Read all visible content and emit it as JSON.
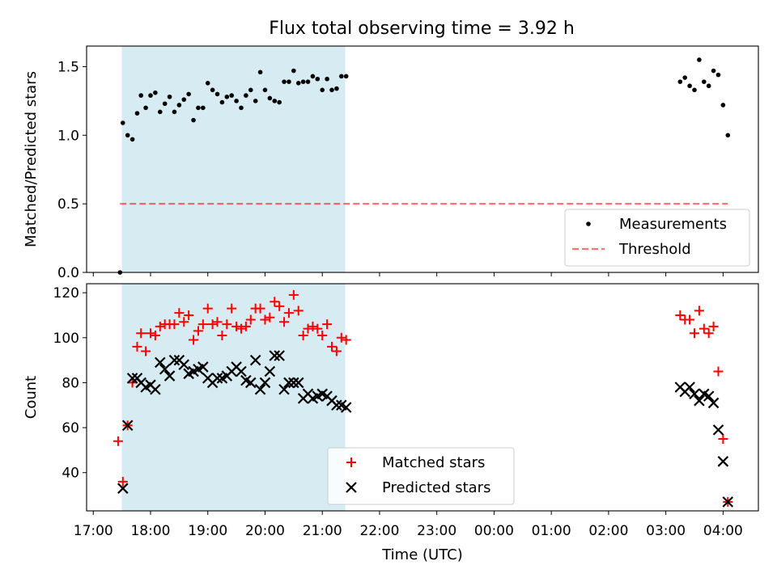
{
  "figure": {
    "title": "Flux total observing time = 3.92 h"
  },
  "colors": {
    "shade": "#add8e6",
    "threshold": "#ff0000",
    "measurement": "#000000",
    "matched": "#ff0000",
    "predicted": "#000000"
  },
  "chart_data": [
    {
      "type": "scatter",
      "ylabel": "Matched/Predicted stars",
      "ylim": [
        0,
        1.65
      ],
      "xlim": [
        "16:53",
        "04:37"
      ],
      "yticks": [
        "0.0",
        "0.5",
        "1.0",
        "1.5"
      ],
      "ytick_values": [
        0,
        0.5,
        1.0,
        1.5
      ],
      "shaded_interval": [
        "17:30",
        "21:24"
      ],
      "legend_position": "lower right",
      "series": [
        {
          "name": "Measurements",
          "kind": "scatter",
          "points": [
            [
              "17:28",
              0.0
            ],
            [
              "17:31",
              1.09
            ],
            [
              "17:36",
              1.0
            ],
            [
              "17:41",
              0.97
            ],
            [
              "17:46",
              1.16
            ],
            [
              "17:50",
              1.29
            ],
            [
              "17:55",
              1.2
            ],
            [
              "18:00",
              1.29
            ],
            [
              "18:05",
              1.31
            ],
            [
              "18:10",
              1.17
            ],
            [
              "18:15",
              1.23
            ],
            [
              "18:20",
              1.28
            ],
            [
              "18:25",
              1.17
            ],
            [
              "18:30",
              1.22
            ],
            [
              "18:35",
              1.26
            ],
            [
              "18:40",
              1.3
            ],
            [
              "18:45",
              1.11
            ],
            [
              "18:50",
              1.2
            ],
            [
              "18:55",
              1.2
            ],
            [
              "19:00",
              1.38
            ],
            [
              "19:05",
              1.33
            ],
            [
              "19:10",
              1.3
            ],
            [
              "19:15",
              1.24
            ],
            [
              "19:20",
              1.28
            ],
            [
              "19:25",
              1.29
            ],
            [
              "19:30",
              1.25
            ],
            [
              "19:35",
              1.2
            ],
            [
              "19:40",
              1.29
            ],
            [
              "19:45",
              1.33
            ],
            [
              "19:50",
              1.25
            ],
            [
              "19:55",
              1.46
            ],
            [
              "20:00",
              1.33
            ],
            [
              "20:05",
              1.27
            ],
            [
              "20:10",
              1.25
            ],
            [
              "20:15",
              1.24
            ],
            [
              "20:20",
              1.39
            ],
            [
              "20:25",
              1.39
            ],
            [
              "20:30",
              1.47
            ],
            [
              "20:35",
              1.38
            ],
            [
              "20:40",
              1.39
            ],
            [
              "20:45",
              1.39
            ],
            [
              "20:50",
              1.43
            ],
            [
              "20:55",
              1.41
            ],
            [
              "21:00",
              1.33
            ],
            [
              "21:05",
              1.41
            ],
            [
              "21:10",
              1.33
            ],
            [
              "21:15",
              1.34
            ],
            [
              "21:20",
              1.43
            ],
            [
              "21:25",
              1.43
            ],
            [
              "03:15",
              1.39
            ],
            [
              "03:20",
              1.42
            ],
            [
              "03:25",
              1.36
            ],
            [
              "03:30",
              1.33
            ],
            [
              "03:35",
              1.55
            ],
            [
              "03:40",
              1.39
            ],
            [
              "03:45",
              1.36
            ],
            [
              "03:50",
              1.47
            ],
            [
              "03:55",
              1.44
            ],
            [
              "04:00",
              1.22
            ],
            [
              "04:05",
              1.0
            ]
          ]
        },
        {
          "name": "Threshold",
          "kind": "line",
          "points": [
            [
              "17:28",
              0.5
            ],
            [
              "04:05",
              0.5
            ]
          ]
        }
      ]
    },
    {
      "type": "scatter",
      "ylabel": "Count",
      "xlabel": "Time (UTC)",
      "ylim": [
        23,
        124
      ],
      "xlim": [
        "16:53",
        "04:37"
      ],
      "yticks": [
        "40",
        "60",
        "80",
        "100",
        "120"
      ],
      "ytick_values": [
        40,
        60,
        80,
        100,
        120
      ],
      "xticks": [
        "17:00",
        "18:00",
        "19:00",
        "20:00",
        "21:00",
        "22:00",
        "23:00",
        "00:00",
        "01:00",
        "02:00",
        "03:00",
        "04:00"
      ],
      "shaded_interval": [
        "17:30",
        "21:24"
      ],
      "legend_position": "lower center",
      "series": [
        {
          "name": "Matched stars",
          "marker": "plus",
          "points": [
            [
              "17:26",
              54
            ],
            [
              "17:31",
              36
            ],
            [
              "17:36",
              61
            ],
            [
              "17:41",
              80
            ],
            [
              "17:46",
              96
            ],
            [
              "17:50",
              102
            ],
            [
              "17:55",
              94
            ],
            [
              "18:00",
              102
            ],
            [
              "18:05",
              101
            ],
            [
              "18:10",
              105
            ],
            [
              "18:15",
              106
            ],
            [
              "18:20",
              106
            ],
            [
              "18:25",
              106
            ],
            [
              "18:30",
              111
            ],
            [
              "18:35",
              107
            ],
            [
              "18:40",
              110
            ],
            [
              "18:45",
              99
            ],
            [
              "18:50",
              103
            ],
            [
              "18:55",
              106
            ],
            [
              "19:00",
              113
            ],
            [
              "19:05",
              106
            ],
            [
              "19:10",
              107
            ],
            [
              "19:15",
              101
            ],
            [
              "19:20",
              106
            ],
            [
              "19:25",
              113
            ],
            [
              "19:30",
              105
            ],
            [
              "19:35",
              104
            ],
            [
              "19:40",
              105
            ],
            [
              "19:45",
              108
            ],
            [
              "19:50",
              113
            ],
            [
              "19:55",
              113
            ],
            [
              "20:00",
              108
            ],
            [
              "20:05",
              109
            ],
            [
              "20:10",
              116
            ],
            [
              "20:15",
              114
            ],
            [
              "20:20",
              107
            ],
            [
              "20:25",
              111
            ],
            [
              "20:30",
              119
            ],
            [
              "20:35",
              112
            ],
            [
              "20:40",
              101
            ],
            [
              "20:45",
              104
            ],
            [
              "20:50",
              105
            ],
            [
              "20:55",
              104
            ],
            [
              "21:00",
              101
            ],
            [
              "21:05",
              106
            ],
            [
              "21:10",
              96
            ],
            [
              "21:15",
              94
            ],
            [
              "21:20",
              100
            ],
            [
              "21:25",
              99
            ],
            [
              "03:15",
              110
            ],
            [
              "03:20",
              108
            ],
            [
              "03:25",
              108
            ],
            [
              "03:30",
              102
            ],
            [
              "03:35",
              112
            ],
            [
              "03:40",
              104
            ],
            [
              "03:45",
              102
            ],
            [
              "03:50",
              105
            ],
            [
              "03:55",
              85
            ],
            [
              "04:00",
              55
            ],
            [
              "04:05",
              27
            ]
          ]
        },
        {
          "name": "Predicted stars",
          "marker": "x",
          "points": [
            [
              "17:31",
              33
            ],
            [
              "17:36",
              61
            ],
            [
              "17:41",
              82
            ],
            [
              "17:46",
              82
            ],
            [
              "17:50",
              80
            ],
            [
              "17:55",
              78
            ],
            [
              "18:00",
              79
            ],
            [
              "18:05",
              77
            ],
            [
              "18:10",
              89
            ],
            [
              "18:15",
              86
            ],
            [
              "18:20",
              83
            ],
            [
              "18:25",
              90
            ],
            [
              "18:30",
              90
            ],
            [
              "18:35",
              88
            ],
            [
              "18:40",
              84
            ],
            [
              "18:45",
              85
            ],
            [
              "18:50",
              86
            ],
            [
              "18:55",
              87
            ],
            [
              "19:00",
              82
            ],
            [
              "19:05",
              80
            ],
            [
              "19:10",
              82
            ],
            [
              "19:15",
              82
            ],
            [
              "19:20",
              83
            ],
            [
              "19:25",
              85
            ],
            [
              "19:30",
              87
            ],
            [
              "19:35",
              85
            ],
            [
              "19:40",
              81
            ],
            [
              "19:45",
              80
            ],
            [
              "19:50",
              90
            ],
            [
              "19:55",
              77
            ],
            [
              "20:00",
              80
            ],
            [
              "20:05",
              85
            ],
            [
              "20:10",
              92
            ],
            [
              "20:15",
              92
            ],
            [
              "20:20",
              77
            ],
            [
              "20:25",
              80
            ],
            [
              "20:30",
              80
            ],
            [
              "20:35",
              80
            ],
            [
              "20:40",
              73
            ],
            [
              "20:45",
              75
            ],
            [
              "20:50",
              73
            ],
            [
              "20:55",
              74
            ],
            [
              "21:00",
              75
            ],
            [
              "21:05",
              74
            ],
            [
              "21:10",
              72
            ],
            [
              "21:15",
              70
            ],
            [
              "21:20",
              70
            ],
            [
              "21:25",
              69
            ],
            [
              "03:15",
              78
            ],
            [
              "03:20",
              76
            ],
            [
              "03:25",
              78
            ],
            [
              "03:30",
              75
            ],
            [
              "03:35",
              72
            ],
            [
              "03:40",
              75
            ],
            [
              "03:45",
              74
            ],
            [
              "03:50",
              71
            ],
            [
              "03:55",
              59
            ],
            [
              "04:00",
              45
            ],
            [
              "04:05",
              27
            ]
          ]
        }
      ]
    }
  ]
}
